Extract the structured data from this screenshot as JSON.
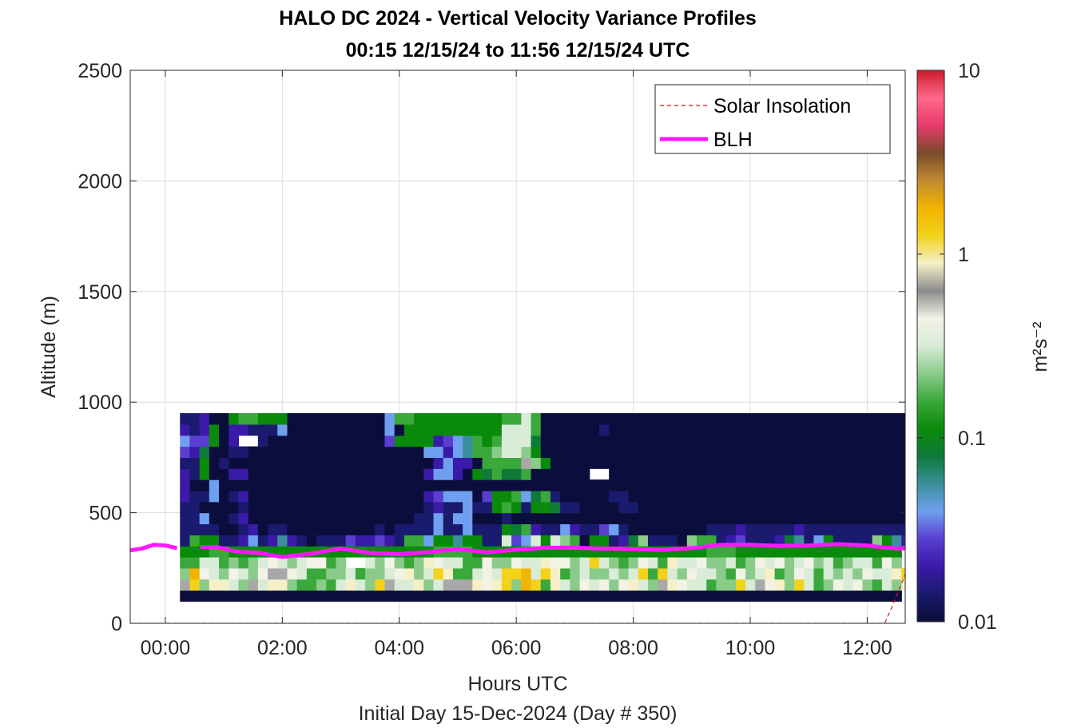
{
  "chart_data": {
    "type": "heatmap",
    "title": [
      "HALO DC 2024 - Vertical Velocity Variance Profiles",
      "00:15 12/15/24 to 11:56 12/15/24  UTC"
    ],
    "xlabel": "Hours UTC",
    "xlabel2": "Initial Day 15-Dec-2024 (Day # 350)",
    "ylabel": "Altitude (m)",
    "xlim_hours": [
      -0.6,
      12.65
    ],
    "ylim": [
      0,
      2500
    ],
    "x_ticks": [
      0,
      2,
      4,
      6,
      8,
      10,
      12
    ],
    "x_tick_labels": [
      "00:00",
      "02:00",
      "04:00",
      "06:00",
      "08:00",
      "10:00",
      "12:00"
    ],
    "y_ticks": [
      0,
      500,
      1000,
      1500,
      2000,
      2500
    ],
    "y_tick_labels": [
      "0",
      "500",
      "1000",
      "1500",
      "2000",
      "2500"
    ],
    "grid": true,
    "colorbar": {
      "label": "m²s⁻²",
      "scale": "log",
      "range": [
        0.01,
        10
      ],
      "ticks": [
        0.01,
        0.1,
        1,
        10
      ],
      "tick_labels": [
        "0.01",
        "0.1",
        "1",
        "10"
      ],
      "colors": [
        "#0b0e3c",
        "#1a1a6e",
        "#3a1aa8",
        "#5a3ed0",
        "#6fa0f0",
        "#3a8f9a",
        "#0d7a3a",
        "#0a8a0a",
        "#3aa83a",
        "#8acb8a",
        "#d8ecd8",
        "#f2f2e6",
        "#8c8c8c",
        "#f5f0c8",
        "#f2d21a",
        "#f2b400",
        "#c08a30",
        "#7a4a2a",
        "#e83a6a",
        "#ff6a8a",
        "#cc1a2a"
      ]
    },
    "legend": {
      "position": "top-right",
      "entries": [
        {
          "name": "Solar Insolation",
          "style": "dashed",
          "color": "#cc1a1a"
        },
        {
          "name": "BLH",
          "style": "solid",
          "color": "#ff18ff"
        }
      ]
    },
    "heatmap": {
      "x_start_hour": 0.25,
      "x_step_hour": 0.1667,
      "y_bottom_m": 100,
      "y_step_m": 50,
      "palette": {
        "a": "#0b0e3c",
        "b": "#1a1a6e",
        "c": "#3a1aa8",
        "d": "#5a3ed0",
        "e": "#6fa0f0",
        "f": "#3a8f9a",
        "g": "#0d7a3a",
        "h": "#0a8a0a",
        "i": "#3aa83a",
        "j": "#8acb8a",
        "k": "#d8ecd8",
        "l": "#f2f2e6",
        "m": "#a8a8a8",
        "n": "#f5f0c8",
        "o": "#f2d21a",
        "p": "#f2b400"
      },
      "rows": [
        "aaaaaaaaaaaaaaaaaaaaaaaaaaaaaaaaaaaaaaaaaaaaaaaaaaaaaaaaaaaaaaaaaaaaaaaaaa",
        "mojnnkjmknnjiijiknkjomkknjkmmmnlnojpoinkjlkljlnkjmnlkkijjokmlnjokijlkljikjn",
        "jplkjlkjlmmlkiijjkijjklnjkoniiklkoopkonijkjjkjkoiokjlkkjiljknijlkikjkjlkkno",
        "iikkijijklkjkllijjkkjljijnlkkiiljjlkknlljkokjijlkinkkljjkijlkljkljkijkkilj",
        "hhhiihhhhhhhhhhhhhhhhhhhhhiiiihhhhhhhhhhhhhhhhhhhhhhhhiiihhhhhhhhhhhhhhhhh",
        "bihhbbcebcfcbabbbdccdcbiiehhfhhbbkdekhkjiahhbcgjbbbajiibcdbbbcgfbehbbbbjhfcc",
        "bbbbaabcabbaaaaaaaaababbbbebbebbbhgicbbecbbdebaaaaaaaabbbcbbbbbcbbbbbbbbbbbb",
        "bbeaabcaaaaaaaaaaaaaaaaabbebeeaaabaaaaaaaaaaaaaaaaaaaaaaaaaaaaaaaaaaaaaaaaaaa",
        "bbaaaabaaaaaaaaaaaaaaaaaabcbbebbhihbhhgbbaaaabbaaaaaaaaaaaaaaaaaaaaaaaaaaaaa",
        "cbbeabcaaaaaaaaaaaaaaaaaacdeeeadhhiegibaaaaabbaaaaaaaaaaaaaaaaaaaaaaaaaaaaaa",
        "caaeaaaaaaaaaaaaaaaaaaaaaaaaaaaaaaaaaaaaaaaaaaaaaaaaaaaaaaaaaaaaaaaaaaaaaaa",
        "cbhaaccaaaaaaaaaaaaaaaaaaceecahgiggiaaaaaaaaaaaaaaaaaaaaaaaaaaaaaaaaaaaaaaaa",
        "bbhabaaaaaaaaaaaaaaaaaaaaaceccaiiiimjhaaaaaaaaaaaaaaaaaaaaaaaaaaaaaaaaaaaaaa",
        "dcgaabbaaaaaaaaaaaaaaaaaaeecefiijkkjhaaaaaaaaaaaaaaaaaaaaaaaaaaaaaaaaaaaaaaa",
        "eddhaccbbaaaaaaaaaaaadhhhhcdefihikkkgaaaaaaaaaaaaaaaaaaaaaaaaaaaaaaaaaaaaaaa",
        "cbchaccbbbeaaaaaaaaaaeahhhhhhhhhhkkkiaaaaaabaaaaaaaaaaaaaaaaaaaaaaaaaaaaaaa",
        "bbcaahiihhhaaaaaaaaaaeiihhhhhhhhhiikiaaaaaaaaaaaaaaaaaaaaaaaaaaaaaaaaaaaaaaa"
      ],
      "blank_cells": [
        [
          3,
          17
        ],
        [
          3,
          18
        ],
        [
          11,
          42
        ],
        [
          11,
          43
        ],
        [
          14,
          6
        ],
        [
          14,
          7
        ]
      ]
    },
    "blh": {
      "x_hours": [
        -0.6,
        -0.4,
        -0.2,
        0.0,
        0.2,
        0.6,
        0.85,
        1.2,
        1.6,
        2.0,
        2.5,
        3.0,
        3.5,
        4.0,
        4.5,
        5.0,
        5.5,
        6.0,
        6.5,
        7.0,
        7.5,
        8.0,
        8.5,
        9.0,
        9.5,
        10.0,
        10.5,
        11.0,
        11.5,
        12.0,
        12.3,
        12.65
      ],
      "altitude_m": [
        330,
        338,
        355,
        352,
        340,
        345,
        346,
        325,
        318,
        300,
        315,
        338,
        318,
        312,
        322,
        336,
        320,
        333,
        342,
        342,
        338,
        336,
        332,
        340,
        355,
        355,
        350,
        352,
        358,
        352,
        342,
        338
      ],
      "gap_hours": [
        0.2,
        0.6
      ]
    },
    "solar_insolation": {
      "x_hours": [
        -0.6,
        12.3,
        12.45,
        12.65
      ],
      "altitude_m": [
        0,
        0,
        90,
        220
      ]
    }
  }
}
